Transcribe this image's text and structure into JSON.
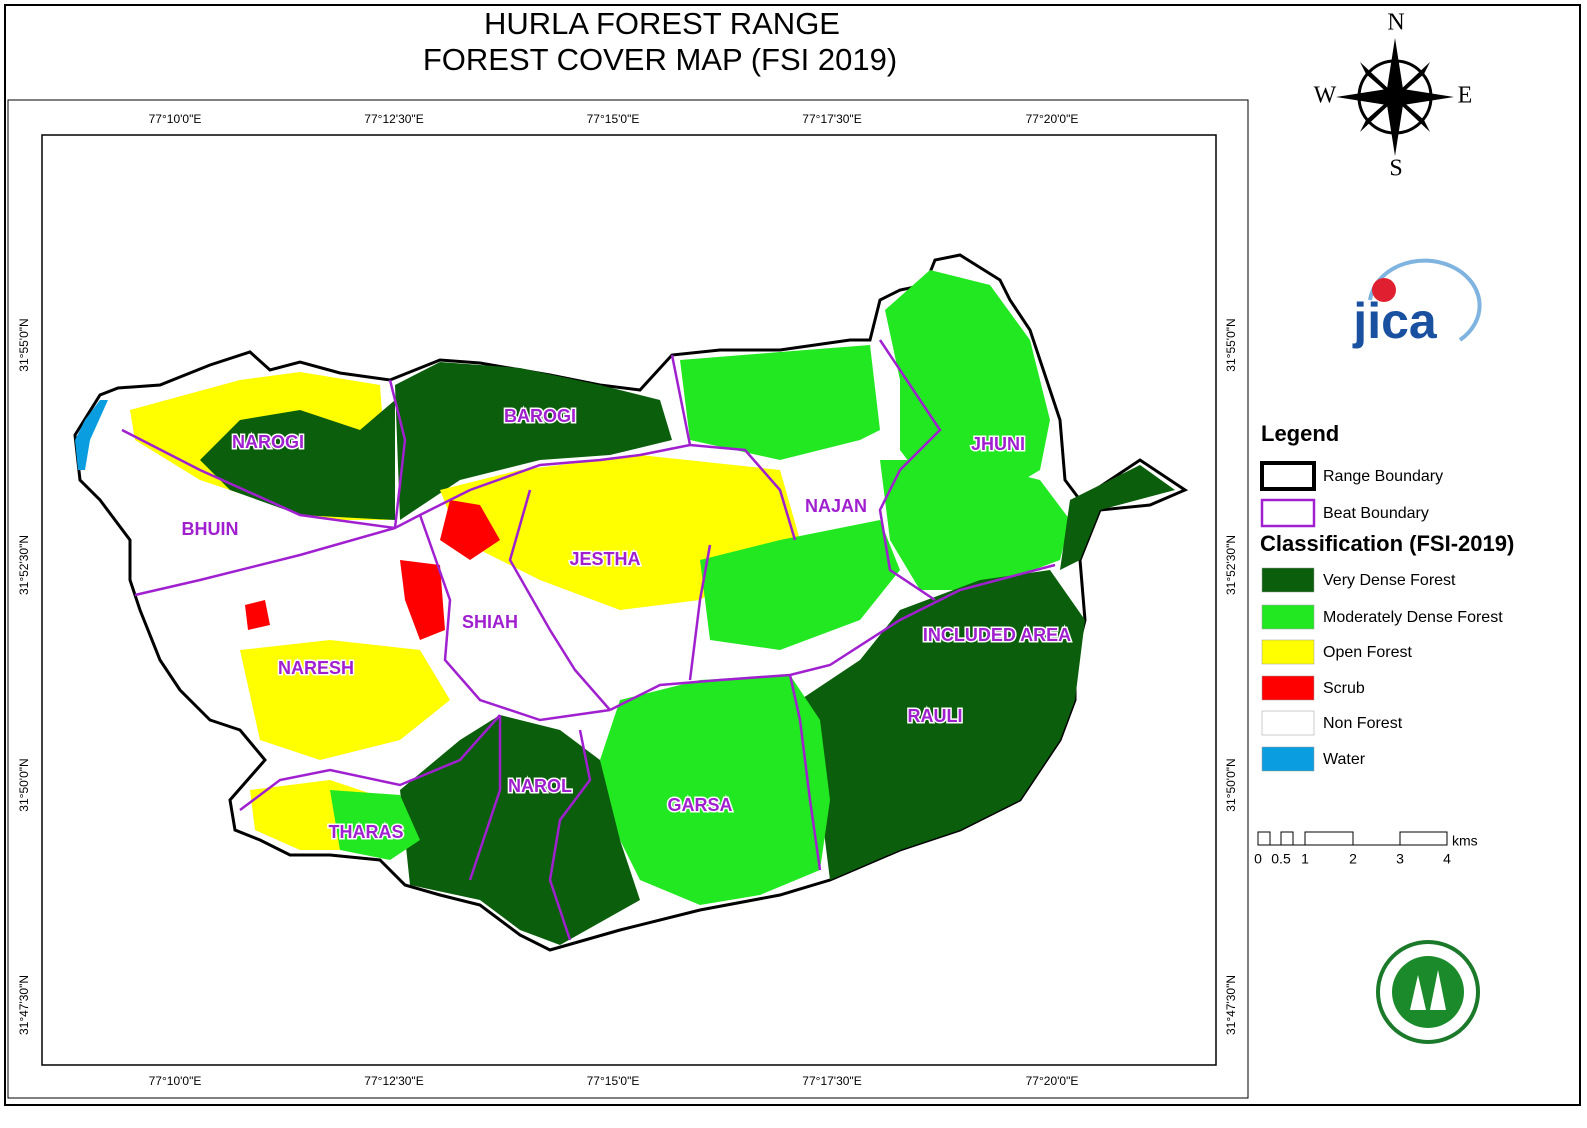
{
  "title": [
    "HURLA FOREST RANGE",
    "FOREST COVER MAP (FSI 2019)"
  ],
  "graticule": {
    "longitudes": [
      "77°10'0\"E",
      "77°12'30\"E",
      "77°15'0\"E",
      "77°17'30\"E",
      "77°20'0\"E"
    ],
    "latitudes": [
      "31°55'0\"N",
      "31°52'30\"N",
      "31°50'0\"N",
      "31°47'30\"N"
    ]
  },
  "beats": [
    "NAROGI",
    "BAROGI",
    "JHUNI",
    "BHUIN",
    "NAJAN",
    "JESTHA",
    "SHIAH",
    "INCLUDED AREA",
    "NARESH",
    "RAULI",
    "NAROL",
    "GARSA",
    "THARAS"
  ],
  "legend": {
    "title": "Legend",
    "boundaries": [
      {
        "label": "Range Boundary",
        "color": "#000000"
      },
      {
        "label": "Beat Boundary",
        "color": "#a020d0"
      }
    ],
    "classification_title": "Classification (FSI-2019)",
    "classes": [
      {
        "label": "Very Dense Forest",
        "color": "#0b5e0b"
      },
      {
        "label": "Moderately Dense Forest",
        "color": "#22e822"
      },
      {
        "label": "Open Forest",
        "color": "#ffff00"
      },
      {
        "label": "Scrub",
        "color": "#ff0000"
      },
      {
        "label": "Non Forest",
        "color": "#ffffff"
      },
      {
        "label": "Water",
        "color": "#0a9ee0"
      }
    ]
  },
  "scale_bar": {
    "labels": [
      "0",
      "0.5",
      "1",
      "2",
      "3",
      "4"
    ],
    "unit": "kms"
  },
  "compass": {
    "north": "N",
    "west": "W",
    "east": "E",
    "south": "S"
  },
  "logo": "jica"
}
